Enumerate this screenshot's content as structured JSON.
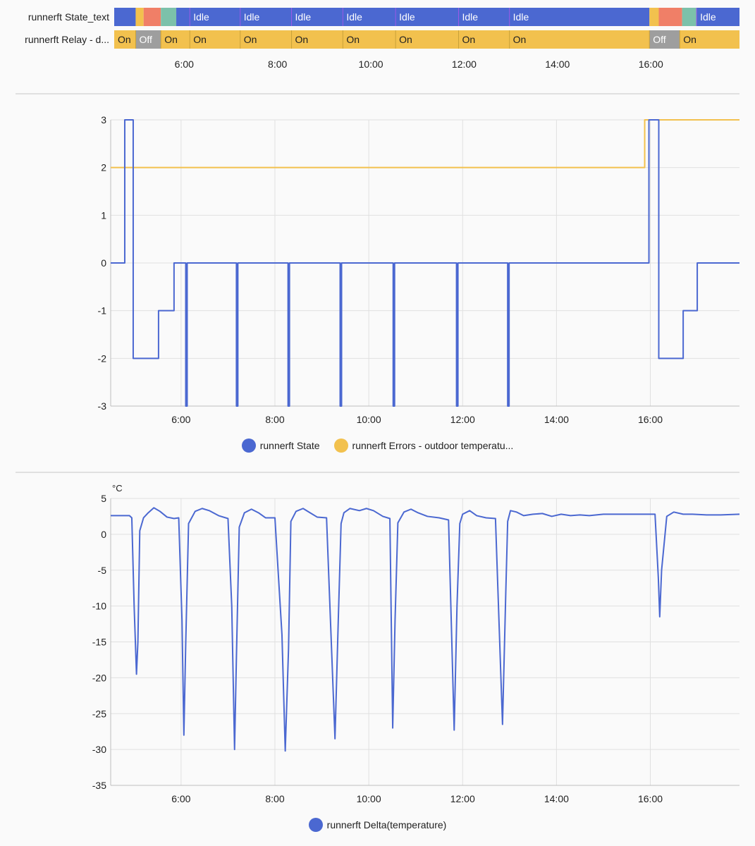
{
  "timeline": {
    "axis": {
      "xmin": 4.5,
      "xmax": 17.9,
      "ticks": [
        6,
        8,
        10,
        12,
        14,
        16
      ],
      "tick_labels": [
        "6:00",
        "8:00",
        "10:00",
        "12:00",
        "14:00",
        "16:00"
      ]
    },
    "rows": [
      {
        "label": "runnerft State_text",
        "segments": [
          {
            "start": 4.5,
            "end": 4.96,
            "color": "#4b68d1",
            "text": ""
          },
          {
            "start": 4.96,
            "end": 5.13,
            "color": "#f2c14e",
            "text": ""
          },
          {
            "start": 5.13,
            "end": 5.5,
            "color": "#f07f67",
            "text": ""
          },
          {
            "start": 5.5,
            "end": 5.83,
            "color": "#7cc1aa",
            "text": ""
          },
          {
            "start": 5.83,
            "end": 6.12,
            "color": "#4b68d1",
            "text": ""
          },
          {
            "start": 6.12,
            "end": 7.2,
            "color": "#4b68d1",
            "text": "Idle"
          },
          {
            "start": 7.2,
            "end": 8.3,
            "color": "#4b68d1",
            "text": "Idle"
          },
          {
            "start": 8.3,
            "end": 9.4,
            "color": "#4b68d1",
            "text": "Idle"
          },
          {
            "start": 9.4,
            "end": 10.53,
            "color": "#4b68d1",
            "text": "Idle"
          },
          {
            "start": 10.53,
            "end": 11.88,
            "color": "#4b68d1",
            "text": "Idle"
          },
          {
            "start": 11.88,
            "end": 12.97,
            "color": "#4b68d1",
            "text": "Idle"
          },
          {
            "start": 12.97,
            "end": 15.97,
            "color": "#4b68d1",
            "text": "Idle"
          },
          {
            "start": 15.97,
            "end": 16.17,
            "color": "#f2c14e",
            "text": ""
          },
          {
            "start": 16.17,
            "end": 16.67,
            "color": "#f07f67",
            "text": ""
          },
          {
            "start": 16.67,
            "end": 16.98,
            "color": "#7cc1aa",
            "text": ""
          },
          {
            "start": 16.98,
            "end": 17.9,
            "color": "#4b68d1",
            "text": "Idle"
          }
        ]
      },
      {
        "label": "runnerft Relay - d...",
        "segments": [
          {
            "start": 4.5,
            "end": 4.96,
            "color": "#f2c14e",
            "text": "On"
          },
          {
            "start": 4.96,
            "end": 5.5,
            "color": "#9e9e9e",
            "text": "Off"
          },
          {
            "start": 5.5,
            "end": 6.12,
            "color": "#f2c14e",
            "text": "On"
          },
          {
            "start": 6.12,
            "end": 7.2,
            "color": "#f2c14e",
            "text": "On"
          },
          {
            "start": 7.2,
            "end": 8.3,
            "color": "#f2c14e",
            "text": "On"
          },
          {
            "start": 8.3,
            "end": 9.4,
            "color": "#f2c14e",
            "text": "On"
          },
          {
            "start": 9.4,
            "end": 10.53,
            "color": "#f2c14e",
            "text": "On"
          },
          {
            "start": 10.53,
            "end": 11.88,
            "color": "#f2c14e",
            "text": "On"
          },
          {
            "start": 11.88,
            "end": 12.97,
            "color": "#f2c14e",
            "text": "On"
          },
          {
            "start": 12.97,
            "end": 15.97,
            "color": "#f2c14e",
            "text": "On"
          },
          {
            "start": 15.97,
            "end": 16.62,
            "color": "#9e9e9e",
            "text": "Off"
          },
          {
            "start": 16.62,
            "end": 17.9,
            "color": "#f2c14e",
            "text": "On"
          }
        ]
      }
    ]
  },
  "chart_data": [
    {
      "type": "line",
      "title": "",
      "xlabel": "",
      "ylabel": "",
      "xlim": [
        4.5,
        17.9
      ],
      "ylim": [
        -3,
        3
      ],
      "x_ticks": [
        6,
        8,
        10,
        12,
        14,
        16
      ],
      "x_tick_labels": [
        "6:00",
        "8:00",
        "10:00",
        "12:00",
        "14:00",
        "16:00"
      ],
      "y_ticks": [
        3,
        2,
        1,
        0,
        -1,
        -2,
        -3
      ],
      "y_tick_labels": [
        "3",
        "2",
        "1",
        "0",
        "-1",
        "-2",
        "-3"
      ],
      "grid": true,
      "step": true,
      "series": [
        {
          "name": "runnerft State",
          "color": "#4b68d1",
          "x": [
            4.5,
            4.8,
            4.8,
            4.98,
            4.98,
            5.52,
            5.52,
            5.85,
            5.85,
            6.1,
            6.1,
            6.13,
            6.13,
            7.18,
            7.18,
            7.21,
            7.21,
            8.28,
            8.28,
            8.31,
            8.31,
            9.39,
            9.39,
            9.42,
            9.42,
            10.52,
            10.52,
            10.55,
            10.55,
            11.87,
            11.87,
            11.9,
            11.9,
            12.96,
            12.96,
            12.99,
            12.99,
            15.97,
            15.97,
            16.18,
            16.18,
            16.7,
            16.7,
            17.0,
            17.0,
            17.9
          ],
          "y": [
            0,
            0,
            3,
            3,
            -2,
            -2,
            -1,
            -1,
            0,
            0,
            -3,
            -3,
            0,
            0,
            -3,
            -3,
            0,
            0,
            -3,
            -3,
            0,
            0,
            -3,
            -3,
            0,
            0,
            -3,
            -3,
            0,
            0,
            -3,
            -3,
            0,
            0,
            -3,
            -3,
            0,
            0,
            3,
            3,
            -2,
            -2,
            -1,
            -1,
            0,
            0
          ]
        },
        {
          "name": "runnerft Errors - outdoor temperatu...",
          "color": "#f2c14e",
          "x": [
            4.5,
            15.88,
            15.88,
            17.9
          ],
          "y": [
            2,
            2,
            3,
            3
          ]
        }
      ],
      "legend": "bottom"
    },
    {
      "type": "line",
      "title": "",
      "xlabel": "",
      "ylabel": "°C",
      "xlim": [
        4.5,
        17.9
      ],
      "ylim": [
        -35,
        5
      ],
      "x_ticks": [
        6,
        8,
        10,
        12,
        14,
        16
      ],
      "x_tick_labels": [
        "6:00",
        "8:00",
        "10:00",
        "12:00",
        "14:00",
        "16:00"
      ],
      "y_ticks": [
        5,
        0,
        -5,
        -10,
        -15,
        -20,
        -25,
        -30,
        -35
      ],
      "y_tick_labels": [
        "5",
        "0",
        "-5",
        "-10",
        "-15",
        "-20",
        "-25",
        "-30",
        "-35"
      ],
      "grid": true,
      "series": [
        {
          "name": "runnerft Delta(temperature)",
          "color": "#4b68d1",
          "x": [
            4.5,
            4.7,
            4.9,
            4.95,
            5.0,
            5.05,
            5.08,
            5.12,
            5.2,
            5.3,
            5.42,
            5.55,
            5.7,
            5.85,
            5.95,
            6.02,
            6.06,
            6.1,
            6.16,
            6.3,
            6.45,
            6.6,
            6.8,
            7.0,
            7.08,
            7.14,
            7.18,
            7.24,
            7.35,
            7.5,
            7.65,
            7.8,
            8.0,
            8.15,
            8.22,
            8.29,
            8.34,
            8.45,
            8.6,
            8.75,
            8.9,
            9.1,
            9.28,
            9.35,
            9.41,
            9.47,
            9.6,
            9.8,
            9.95,
            10.1,
            10.3,
            10.45,
            10.51,
            10.56,
            10.62,
            10.75,
            10.9,
            11.05,
            11.25,
            11.5,
            11.7,
            11.82,
            11.88,
            11.94,
            12.0,
            12.15,
            12.3,
            12.5,
            12.7,
            12.85,
            12.92,
            12.96,
            13.02,
            13.15,
            13.3,
            13.5,
            13.7,
            13.9,
            14.1,
            14.3,
            14.5,
            14.7,
            15.0,
            15.3,
            15.6,
            15.9,
            16.1,
            16.17,
            16.2,
            16.24,
            16.35,
            16.5,
            16.7,
            16.9,
            17.2,
            17.5,
            17.9
          ],
          "y": [
            2.6,
            2.6,
            2.6,
            2.3,
            -10,
            -19.5,
            -15,
            0.5,
            2.3,
            3.0,
            3.7,
            3.2,
            2.4,
            2.2,
            2.3,
            -12,
            -28,
            -15,
            1.5,
            3.2,
            3.6,
            3.3,
            2.6,
            2.2,
            -10,
            -30,
            -17,
            1.0,
            3.0,
            3.5,
            3.0,
            2.3,
            2.3,
            -14,
            -30.2,
            -16,
            1.8,
            3.2,
            3.6,
            3.0,
            2.4,
            2.3,
            -28.5,
            -12,
            1.5,
            3.0,
            3.6,
            3.3,
            3.6,
            3.3,
            2.5,
            2.2,
            -27,
            -12,
            1.6,
            3.1,
            3.5,
            3.0,
            2.5,
            2.3,
            2.0,
            -27.3,
            -10,
            1.5,
            2.8,
            3.3,
            2.6,
            2.3,
            2.2,
            -26.5,
            -8,
            1.8,
            3.3,
            3.1,
            2.6,
            2.8,
            2.9,
            2.5,
            2.8,
            2.6,
            2.7,
            2.6,
            2.8,
            2.8,
            2.8,
            2.8,
            2.8,
            -6,
            -11.5,
            -5,
            2.5,
            3.1,
            2.8,
            2.8,
            2.7,
            2.7,
            2.8
          ],
          "min_points": [
            5.05,
            6.1,
            7.18,
            8.29,
            9.41,
            10.56,
            11.88,
            12.96,
            16.2
          ]
        }
      ],
      "legend": "bottom"
    }
  ],
  "charts": {
    "state": {
      "legend": [
        {
          "label": "runnerft State",
          "color": "#4b68d1"
        },
        {
          "label": "runnerft Errors - outdoor temperatu...",
          "color": "#f2c14e"
        }
      ]
    },
    "delta": {
      "unit_label": "°C",
      "legend": [
        {
          "label": "runnerft Delta(temperature)",
          "color": "#4b68d1"
        }
      ]
    }
  }
}
